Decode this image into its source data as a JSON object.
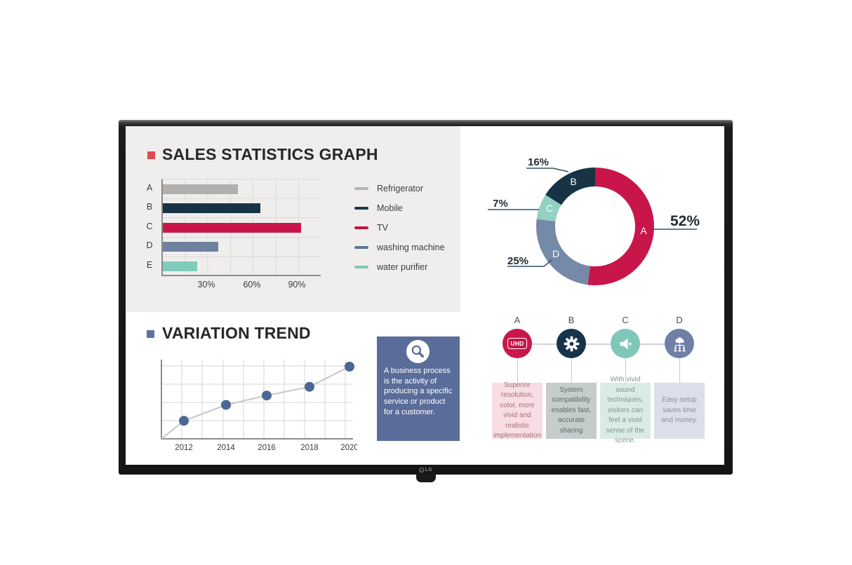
{
  "monitor": {
    "brand": "LG"
  },
  "sales_panel": {
    "title": "SALES STATISTICS GRAPH",
    "bullet_color": "#e04a4e",
    "x_ticks": [
      "30%",
      "60%",
      "90%"
    ],
    "legend": [
      {
        "label": "Refrigerator",
        "color": "#b4b4b4"
      },
      {
        "label": "Mobile",
        "color": "#1c3a4c"
      },
      {
        "label": "TV",
        "color": "#c51543"
      },
      {
        "label": "washing machine",
        "color": "#5f7596"
      },
      {
        "label": "water purifier",
        "color": "#7cc9b6"
      }
    ]
  },
  "donut": {
    "slices": [
      {
        "letter": "A",
        "pct": "52%",
        "value": 52,
        "color": "#c8164a"
      },
      {
        "letter": "D",
        "pct": "25%",
        "value": 25,
        "color": "#7589a8"
      },
      {
        "letter": "C",
        "pct": "7%",
        "value": 7,
        "color": "#92d1c3"
      },
      {
        "letter": "B",
        "pct": "16%",
        "value": 16,
        "color": "#173345"
      }
    ]
  },
  "trend": {
    "title": "VARIATION TREND",
    "bullet_color": "#5874a3",
    "years": [
      "2012",
      "2014",
      "2016",
      "2018",
      "2020"
    ]
  },
  "info_box": {
    "text": "A business process is the activity of producing a specific service or product for a customer.",
    "bg_color": "#5a6c99"
  },
  "features": [
    {
      "letter": "A",
      "icon": "uhd-badge-icon",
      "icon_label": "UHD",
      "circle_color": "#c8174b",
      "box_color": "#f6dee4",
      "text_color": "#af6b77",
      "text": "Superior resolution, color, more vivid and realistic implementation"
    },
    {
      "letter": "B",
      "icon": "gear-icon",
      "circle_color": "#17334a",
      "box_color": "#c5cccc",
      "text_color": "#5e6a6a",
      "text": "System compatibility enables fast, accurate sharing"
    },
    {
      "letter": "C",
      "icon": "speaker-icon",
      "circle_color": "#7fc8b9",
      "box_color": "#daeae5",
      "text_color": "#7f968f",
      "text": "With vivid sound techniques, visitors can feel a vivid sense of the scene."
    },
    {
      "letter": "D",
      "icon": "cloud-network-icon",
      "circle_color": "#6f7fa6",
      "box_color": "#dbdfe9",
      "text_color": "#8a8f9a",
      "text": "Easy setup saves time and money."
    }
  ],
  "chart_data": [
    {
      "type": "bar",
      "orientation": "horizontal",
      "title": "SALES STATISTICS GRAPH",
      "categories": [
        "A",
        "B",
        "C",
        "D",
        "E"
      ],
      "values": [
        50,
        65,
        92,
        37,
        23
      ],
      "unit": "%",
      "xlim": [
        0,
        105
      ],
      "x_ticks": [
        "30%",
        "60%",
        "90%"
      ],
      "colors": [
        "#b0b0b0",
        "#173345",
        "#c8164a",
        "#6e81a1",
        "#80ccba"
      ],
      "series_names": [
        "Refrigerator",
        "Mobile",
        "TV",
        "washing machine",
        "water purifier"
      ],
      "grid": true,
      "legend_position": "right"
    },
    {
      "type": "pie",
      "donut": true,
      "start_angle_deg": 0,
      "direction": "clockwise",
      "labels": [
        "A",
        "D",
        "C",
        "B"
      ],
      "values": [
        52,
        25,
        7,
        16
      ],
      "unit": "%",
      "colors": [
        "#c8164a",
        "#7589a8",
        "#92d1c3",
        "#173345"
      ]
    },
    {
      "type": "line",
      "title": "VARIATION TREND",
      "x": [
        "2012",
        "2014",
        "2016",
        "2018",
        "2020"
      ],
      "values": [
        25,
        47,
        60,
        72,
        100
      ],
      "ylim": [
        0,
        105
      ],
      "grid": true,
      "marker": "circle"
    }
  ]
}
